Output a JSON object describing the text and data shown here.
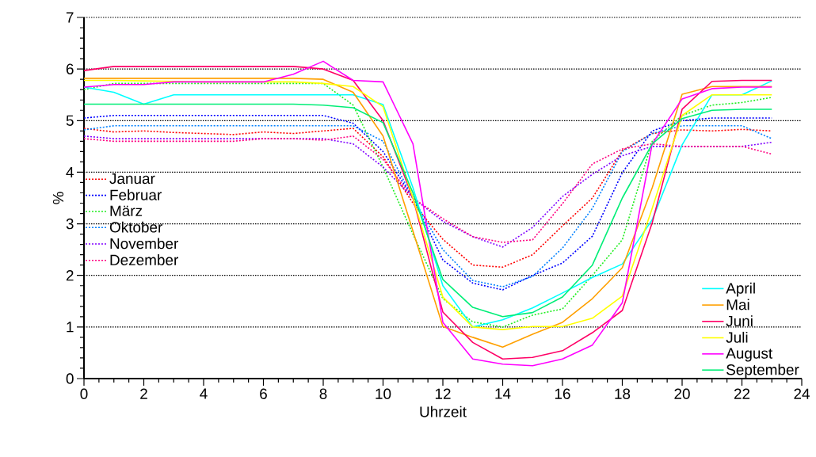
{
  "chart_data": {
    "type": "line",
    "xlabel": "Uhrzeit",
    "ylabel": "%",
    "x": [
      0,
      1,
      2,
      3,
      4,
      5,
      6,
      7,
      8,
      9,
      10,
      11,
      12,
      13,
      14,
      15,
      16,
      17,
      18,
      19,
      20,
      21,
      22,
      23
    ],
    "xlim": [
      0,
      24
    ],
    "xticks": [
      0,
      2,
      4,
      6,
      8,
      10,
      12,
      14,
      16,
      18,
      20,
      22,
      24
    ],
    "ylim": [
      0,
      7
    ],
    "yticks": [
      0,
      1,
      2,
      3,
      4,
      5,
      6,
      7
    ],
    "grid": "y",
    "legend": "left",
    "marker": "none",
    "series": [
      {
        "name": "Januar",
        "color": "#ff0000",
        "line_style": "dotted",
        "values": [
          4.85,
          4.78,
          4.8,
          4.77,
          4.75,
          4.73,
          4.78,
          4.75,
          4.8,
          4.85,
          4.3,
          3.4,
          2.7,
          2.2,
          2.16,
          2.4,
          2.96,
          3.5,
          4.42,
          4.75,
          4.82,
          4.8,
          4.83,
          4.8
        ]
      },
      {
        "name": "Februar",
        "color": "#0000ff",
        "line_style": "dotted",
        "values": [
          5.05,
          5.1,
          5.1,
          5.1,
          5.1,
          5.1,
          5.1,
          5.1,
          5.1,
          4.95,
          4.4,
          3.5,
          2.3,
          1.85,
          1.72,
          2.0,
          2.24,
          2.76,
          3.99,
          4.8,
          5.0,
          5.05,
          5.05,
          5.05
        ]
      },
      {
        "name": "März",
        "color": "#22ee22",
        "line_style": "dotted",
        "values": [
          5.6,
          5.72,
          5.72,
          5.72,
          5.72,
          5.72,
          5.72,
          5.72,
          5.72,
          5.3,
          4.1,
          2.8,
          1.55,
          1.1,
          1.0,
          1.23,
          1.35,
          2.0,
          2.69,
          4.6,
          5.1,
          5.3,
          5.35,
          5.45
        ]
      },
      {
        "name": "Oktober",
        "color": "#0080ff",
        "line_style": "dotted",
        "values": [
          4.82,
          4.9,
          4.9,
          4.9,
          4.9,
          4.9,
          4.9,
          4.9,
          4.9,
          4.9,
          4.6,
          3.5,
          2.5,
          1.9,
          1.78,
          1.98,
          2.53,
          3.3,
          4.4,
          4.75,
          4.9,
          4.9,
          4.9,
          4.65
        ]
      },
      {
        "name": "November",
        "color": "#8000ff",
        "line_style": "dotted",
        "values": [
          4.7,
          4.65,
          4.65,
          4.65,
          4.65,
          4.65,
          4.65,
          4.65,
          4.65,
          4.55,
          4.1,
          3.5,
          3.05,
          2.75,
          2.55,
          2.93,
          3.53,
          3.96,
          4.32,
          4.5,
          4.5,
          4.5,
          4.5,
          4.58
        ]
      },
      {
        "name": "Dezember",
        "color": "#ff0080",
        "line_style": "dotted",
        "values": [
          4.65,
          4.6,
          4.6,
          4.6,
          4.6,
          4.6,
          4.65,
          4.65,
          4.62,
          4.7,
          4.25,
          3.5,
          3.1,
          2.75,
          2.64,
          2.69,
          3.39,
          4.16,
          4.45,
          4.55,
          4.5,
          4.5,
          4.5,
          4.35
        ]
      },
      {
        "name": "April",
        "color": "#00ffff",
        "line_style": "solid",
        "values": [
          5.65,
          5.55,
          5.32,
          5.5,
          5.5,
          5.5,
          5.5,
          5.5,
          5.5,
          5.5,
          5.31,
          3.7,
          1.8,
          1.0,
          1.14,
          1.37,
          1.66,
          1.96,
          2.22,
          3.08,
          4.53,
          5.5,
          5.5,
          5.77
        ]
      },
      {
        "name": "Mai",
        "color": "#ffa000",
        "line_style": "solid",
        "values": [
          5.82,
          5.82,
          5.82,
          5.82,
          5.82,
          5.82,
          5.82,
          5.82,
          5.8,
          5.55,
          4.7,
          2.86,
          1.01,
          0.8,
          0.61,
          0.86,
          1.09,
          1.55,
          2.15,
          3.7,
          5.51,
          5.66,
          5.66,
          5.66
        ]
      },
      {
        "name": "Juni",
        "color": "#ff0066",
        "line_style": "solid",
        "values": [
          5.97,
          6.05,
          6.05,
          6.05,
          6.05,
          6.05,
          6.05,
          6.05,
          6.0,
          5.78,
          5.0,
          3.5,
          1.29,
          0.7,
          0.38,
          0.41,
          0.54,
          0.89,
          1.32,
          3.02,
          5.22,
          5.76,
          5.78,
          5.78
        ]
      },
      {
        "name": "Juli",
        "color": "#ffff00",
        "line_style": "solid",
        "values": [
          5.78,
          5.78,
          5.77,
          5.76,
          5.75,
          5.75,
          5.75,
          5.75,
          5.72,
          5.66,
          5.27,
          3.5,
          1.58,
          1.0,
          0.95,
          1.01,
          1.01,
          1.17,
          1.6,
          3.3,
          5.1,
          5.5,
          5.5,
          5.5
        ]
      },
      {
        "name": "August",
        "color": "#ff00ff",
        "line_style": "solid",
        "values": [
          5.65,
          5.7,
          5.7,
          5.75,
          5.75,
          5.75,
          5.75,
          5.9,
          6.15,
          5.78,
          5.75,
          4.55,
          1.09,
          0.38,
          0.28,
          0.25,
          0.38,
          0.65,
          1.47,
          4.55,
          5.42,
          5.62,
          5.65,
          5.65
        ]
      },
      {
        "name": "September",
        "color": "#00ee77",
        "line_style": "solid",
        "values": [
          5.32,
          5.32,
          5.32,
          5.32,
          5.32,
          5.32,
          5.32,
          5.32,
          5.3,
          5.25,
          4.96,
          3.6,
          1.92,
          1.38,
          1.2,
          1.28,
          1.58,
          2.2,
          3.5,
          4.55,
          5.04,
          5.2,
          5.22,
          5.22
        ]
      }
    ]
  }
}
